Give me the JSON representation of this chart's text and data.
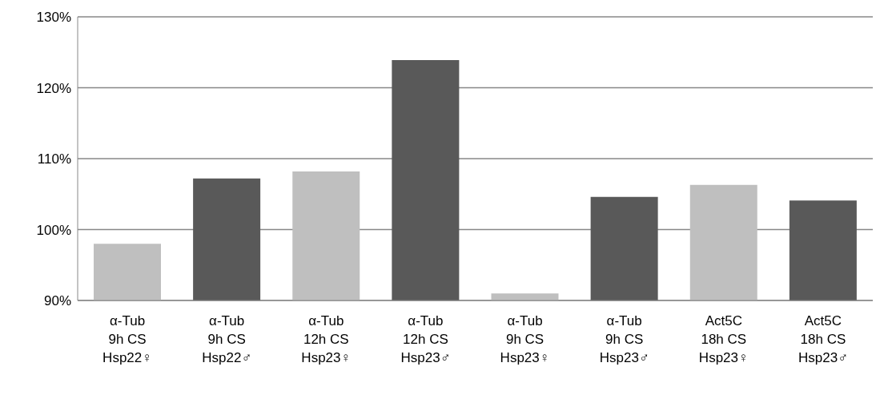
{
  "chart_data": {
    "type": "bar",
    "categories": [
      "α-Tub\n9h CS\nHsp22♀",
      "α-Tub\n9h CS\nHsp22♂",
      "α-Tub\n12h CS\nHsp23♀",
      "α-Tub\n12h CS\nHsp23♂",
      "α-Tub\n9h CS\nHsp23♀",
      "α-Tub\n9h CS\nHsp23♂",
      "Act5C\n18h CS\nHsp23♀",
      "Act5C\n18h CS\nHsp23♂"
    ],
    "values": [
      98.0,
      107.2,
      108.2,
      123.9,
      91.0,
      104.6,
      106.3,
      104.1
    ],
    "colors": [
      "#bfbfbf",
      "#595959",
      "#bfbfbf",
      "#595959",
      "#bfbfbf",
      "#595959",
      "#bfbfbf",
      "#595959"
    ],
    "ylim": [
      90,
      130
    ],
    "yticks": [
      {
        "value": 90,
        "label": "90%"
      },
      {
        "value": 100,
        "label": "100%"
      },
      {
        "value": 110,
        "label": "110%"
      },
      {
        "value": 120,
        "label": "120%"
      },
      {
        "value": 130,
        "label": "130%"
      }
    ],
    "grid": "y"
  }
}
